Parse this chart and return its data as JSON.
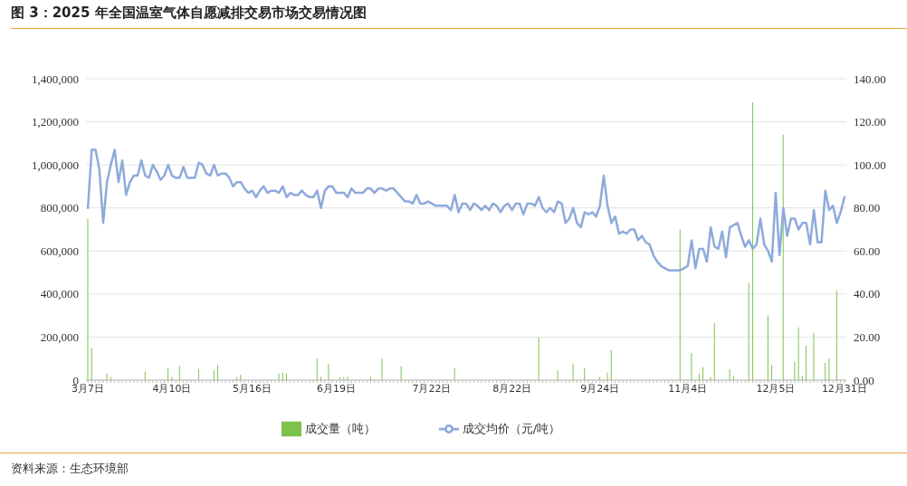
{
  "chart_data": {
    "type": "bar",
    "title": "图 3：2025 年全国温室气体自愿减排交易市场交易情况图",
    "annotations": [
      "资料来源：生态环境部"
    ],
    "categories": [
      "3月7日",
      null,
      null,
      null,
      null,
      null,
      null,
      null,
      null,
      null,
      null,
      null,
      null,
      null,
      null,
      null,
      null,
      null,
      null,
      null,
      null,
      null,
      "4月10日",
      null,
      null,
      null,
      null,
      null,
      null,
      null,
      null,
      null,
      null,
      null,
      null,
      null,
      null,
      null,
      null,
      null,
      null,
      null,
      null,
      "5月16日",
      null,
      null,
      null,
      null,
      null,
      null,
      null,
      null,
      null,
      null,
      null,
      null,
      null,
      null,
      null,
      null,
      null,
      null,
      null,
      null,
      null,
      "6月19日",
      null,
      null,
      null,
      null,
      null,
      null,
      null,
      null,
      null,
      null,
      null,
      null,
      null,
      null,
      null,
      null,
      null,
      null,
      null,
      null,
      null,
      null,
      null,
      null,
      "7月22日",
      null,
      null,
      null,
      null,
      null,
      null,
      null,
      null,
      null,
      null,
      null,
      null,
      null,
      null,
      null,
      null,
      null,
      null,
      null,
      null,
      "8月22日",
      null,
      null,
      null,
      null,
      null,
      null,
      null,
      null,
      null,
      null,
      null,
      null,
      null,
      null,
      null,
      null,
      null,
      null,
      null,
      null,
      null,
      null,
      "9月24日",
      null,
      null,
      null,
      null,
      null,
      null,
      null,
      null,
      null,
      null,
      null,
      null,
      null,
      null,
      null,
      null,
      null,
      null,
      null,
      null,
      null,
      null,
      "11月4日",
      null,
      null,
      null,
      null,
      null,
      null,
      null,
      null,
      null,
      null,
      null,
      null,
      null,
      null,
      null,
      null,
      null,
      null,
      null,
      null,
      null,
      null,
      "12月5日",
      null,
      null,
      null,
      null,
      null,
      null,
      null,
      null,
      null,
      null,
      null,
      null,
      null,
      null,
      null,
      null,
      null,
      "12月31日"
    ],
    "series": [
      {
        "name": "成交量（吨）",
        "color": "#7dc24b",
        "values": [
          750000,
          150000,
          0,
          0,
          0,
          30000,
          15000,
          0,
          0,
          0,
          0,
          0,
          0,
          0,
          0,
          40000,
          0,
          0,
          0,
          0,
          0,
          55000,
          15000,
          0,
          65000,
          0,
          0,
          0,
          0,
          50000,
          0,
          0,
          0,
          45000,
          70000,
          0,
          0,
          0,
          0,
          15000,
          25000,
          0,
          0,
          0,
          0,
          0,
          0,
          0,
          0,
          0,
          30000,
          35000,
          30000,
          0,
          0,
          0,
          0,
          0,
          0,
          0,
          100000,
          15000,
          0,
          75000,
          0,
          0,
          15000,
          15000,
          15000,
          0,
          0,
          0,
          0,
          0,
          15000,
          0,
          0,
          100000,
          0,
          0,
          0,
          0,
          65000,
          0,
          0,
          0,
          0,
          0,
          0,
          0,
          0,
          0,
          0,
          0,
          0,
          0,
          55000,
          0,
          0,
          0,
          0,
          0,
          0,
          0,
          0,
          0,
          0,
          0,
          0,
          0,
          0,
          0,
          0,
          0,
          0,
          0,
          0,
          0,
          200000,
          0,
          0,
          0,
          0,
          45000,
          0,
          null,
          0,
          75000,
          0,
          0,
          55000,
          0,
          0,
          0,
          15000,
          0,
          35000,
          140000,
          0,
          0,
          0,
          0,
          0,
          0,
          0,
          0,
          0,
          0,
          0,
          0,
          0,
          0,
          0,
          null,
          0,
          700000,
          0,
          0,
          125000,
          0,
          30000,
          60000,
          0,
          15000,
          265000,
          0,
          0,
          0,
          50000,
          20000,
          0,
          0,
          0,
          450000,
          1290000,
          0,
          0,
          0,
          300000,
          70000,
          0,
          0,
          1140000,
          0,
          0,
          85000,
          245000,
          20000,
          160000,
          0,
          220000,
          0,
          0,
          80000,
          100000,
          0,
          415000,
          0,
          0
        ]
      },
      {
        "name": "成交均价（元/吨）",
        "type": "line",
        "axis": "y2",
        "color": "#8eaadb",
        "values": [
          80,
          107,
          107,
          98,
          73,
          92,
          100,
          107,
          92,
          102,
          86,
          92,
          95,
          95,
          102,
          95,
          94,
          100,
          97,
          93,
          95,
          100,
          95,
          94,
          94,
          99,
          94,
          94,
          94,
          101,
          100,
          96,
          95,
          100,
          95,
          96,
          96,
          94,
          90,
          92,
          92,
          89,
          87,
          88,
          85,
          88,
          90,
          87,
          88,
          88,
          87,
          90,
          85,
          87,
          86,
          86,
          88,
          86,
          85,
          85,
          88,
          80,
          88,
          90,
          90,
          87,
          87,
          87,
          85,
          89,
          87,
          87,
          87,
          89,
          89,
          87,
          89,
          89,
          88,
          89,
          89,
          87,
          85,
          83,
          83,
          82,
          86,
          82,
          82,
          83,
          82,
          81,
          81,
          81,
          81,
          79,
          86,
          78,
          82,
          82,
          79,
          82,
          81,
          79,
          81,
          79,
          82,
          81,
          78,
          81,
          82,
          79,
          82,
          82,
          77,
          82,
          82,
          81,
          85,
          80,
          78,
          80,
          78,
          83,
          82,
          73,
          75,
          80,
          73,
          71,
          78,
          77,
          78,
          76,
          81,
          95,
          81,
          73,
          76,
          68,
          69,
          68,
          70,
          70,
          65,
          67,
          64,
          63,
          58,
          55,
          53,
          52,
          51,
          51,
          51,
          51,
          52,
          53,
          65,
          52,
          61,
          61,
          55,
          71,
          62,
          61,
          69,
          57,
          71,
          72,
          73,
          67,
          62,
          65,
          61,
          63,
          75,
          63,
          60,
          55,
          87,
          58,
          80,
          67,
          75,
          75,
          70,
          73,
          73,
          63,
          79,
          64,
          64,
          88,
          79,
          81,
          73,
          78,
          85
        ]
      }
    ],
    "ylim": [
      0,
      1400000
    ],
    "yticks": [
      {
        "value": 0,
        "label": "0"
      },
      {
        "value": 200000,
        "label": "200,000"
      },
      {
        "value": 400000,
        "label": "400,000"
      },
      {
        "value": 600000,
        "label": "600,000"
      },
      {
        "value": 800000,
        "label": "800,000"
      },
      {
        "value": 1000000,
        "label": "1,000,000"
      },
      {
        "value": 1200000,
        "label": "1,200,000"
      },
      {
        "value": 1400000,
        "label": "1,400,000"
      }
    ],
    "y2lim": [
      0,
      140
    ],
    "y2ticks": [
      {
        "value": 0,
        "label": "0.00"
      },
      {
        "value": 20,
        "label": "20.00"
      },
      {
        "value": 40,
        "label": "40.00"
      },
      {
        "value": 60,
        "label": "60.00"
      },
      {
        "value": 80,
        "label": "80.00"
      },
      {
        "value": 100,
        "label": "100.00"
      },
      {
        "value": 120,
        "label": "120.00"
      },
      {
        "value": 140,
        "label": "140.00"
      }
    ],
    "grid": "y",
    "legend": "bottom",
    "marker": "none",
    "line_style": "solid"
  }
}
